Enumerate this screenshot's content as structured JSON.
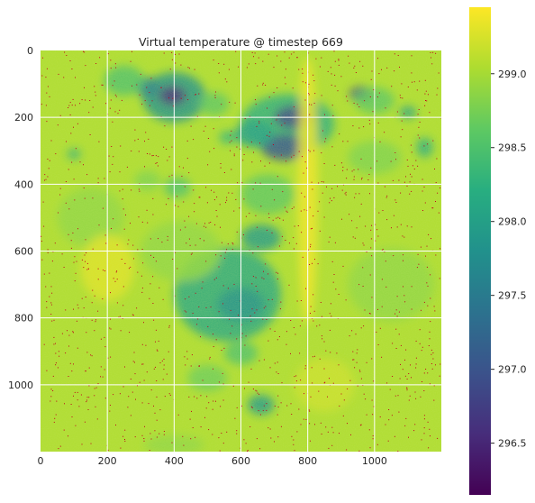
{
  "chart_data": {
    "type": "heatmap",
    "title": "Virtual temperature @ timestep 669",
    "xlabel": "",
    "ylabel": "",
    "xlim": [
      0,
      1200
    ],
    "ylim": [
      1200,
      0
    ],
    "x_ticks": [
      0,
      200,
      400,
      600,
      800,
      1000
    ],
    "y_ticks": [
      0,
      200,
      400,
      600,
      800,
      1000
    ],
    "grid": true,
    "colormap": "viridis",
    "colorbar": {
      "range": [
        296.15,
        299.45
      ],
      "ticks": [
        296.5,
        297.0,
        297.5,
        298.0,
        298.5,
        299.0
      ],
      "tick_labels": [
        "296.5",
        "297.0",
        "297.5",
        "298.0",
        "298.5",
        "299.0"
      ]
    },
    "background_value": 299.05,
    "features": [
      {
        "x": 400,
        "y": 140,
        "rx": 95,
        "ry": 75,
        "value": 297.8
      },
      {
        "x": 395,
        "y": 135,
        "rx": 40,
        "ry": 28,
        "value": 296.6
      },
      {
        "x": 320,
        "y": 110,
        "rx": 35,
        "ry": 30,
        "value": 297.6
      },
      {
        "x": 250,
        "y": 90,
        "rx": 60,
        "ry": 45,
        "value": 298.5
      },
      {
        "x": 740,
        "y": 220,
        "rx": 140,
        "ry": 90,
        "value": 298.2
      },
      {
        "x": 760,
        "y": 200,
        "rx": 60,
        "ry": 35,
        "value": 296.9
      },
      {
        "x": 730,
        "y": 290,
        "rx": 70,
        "ry": 40,
        "value": 297.0
      },
      {
        "x": 640,
        "y": 250,
        "rx": 60,
        "ry": 40,
        "value": 298.0
      },
      {
        "x": 960,
        "y": 130,
        "rx": 35,
        "ry": 22,
        "value": 296.8
      },
      {
        "x": 1000,
        "y": 150,
        "rx": 60,
        "ry": 40,
        "value": 298.6
      },
      {
        "x": 1100,
        "y": 185,
        "rx": 25,
        "ry": 18,
        "value": 298.0
      },
      {
        "x": 520,
        "y": 160,
        "rx": 45,
        "ry": 35,
        "value": 298.6
      },
      {
        "x": 560,
        "y": 260,
        "rx": 25,
        "ry": 20,
        "value": 298.3
      },
      {
        "x": 680,
        "y": 430,
        "rx": 80,
        "ry": 60,
        "value": 298.6
      },
      {
        "x": 660,
        "y": 560,
        "rx": 60,
        "ry": 40,
        "value": 297.9
      },
      {
        "x": 560,
        "y": 730,
        "rx": 160,
        "ry": 140,
        "value": 298.1
      },
      {
        "x": 600,
        "y": 760,
        "rx": 70,
        "ry": 50,
        "value": 297.8
      },
      {
        "x": 420,
        "y": 600,
        "rx": 120,
        "ry": 90,
        "value": 298.9
      },
      {
        "x": 660,
        "y": 1060,
        "rx": 40,
        "ry": 30,
        "value": 297.9
      },
      {
        "x": 500,
        "y": 980,
        "rx": 60,
        "ry": 40,
        "value": 298.7
      },
      {
        "x": 410,
        "y": 410,
        "rx": 40,
        "ry": 30,
        "value": 298.5
      },
      {
        "x": 1000,
        "y": 320,
        "rx": 80,
        "ry": 50,
        "value": 298.8
      },
      {
        "x": 150,
        "y": 500,
        "rx": 100,
        "ry": 90,
        "value": 298.9
      },
      {
        "x": 1150,
        "y": 290,
        "rx": 25,
        "ry": 30,
        "value": 298.2
      },
      {
        "x": 100,
        "y": 310,
        "rx": 20,
        "ry": 15,
        "value": 298.2
      },
      {
        "x": 800,
        "y": 420,
        "rx": 30,
        "ry": 400,
        "value": 299.4
      },
      {
        "x": 1050,
        "y": 700,
        "rx": 130,
        "ry": 110,
        "value": 298.9
      },
      {
        "x": 400,
        "y": 1180,
        "rx": 90,
        "ry": 30,
        "value": 298.9
      },
      {
        "x": 200,
        "y": 650,
        "rx": 80,
        "ry": 100,
        "value": 299.3
      },
      {
        "x": 850,
        "y": 1000,
        "rx": 90,
        "ry": 80,
        "value": 299.2
      },
      {
        "x": 320,
        "y": 390,
        "rx": 40,
        "ry": 30,
        "value": 298.8
      },
      {
        "x": 600,
        "y": 905,
        "rx": 50,
        "ry": 35,
        "value": 298.5
      }
    ]
  }
}
